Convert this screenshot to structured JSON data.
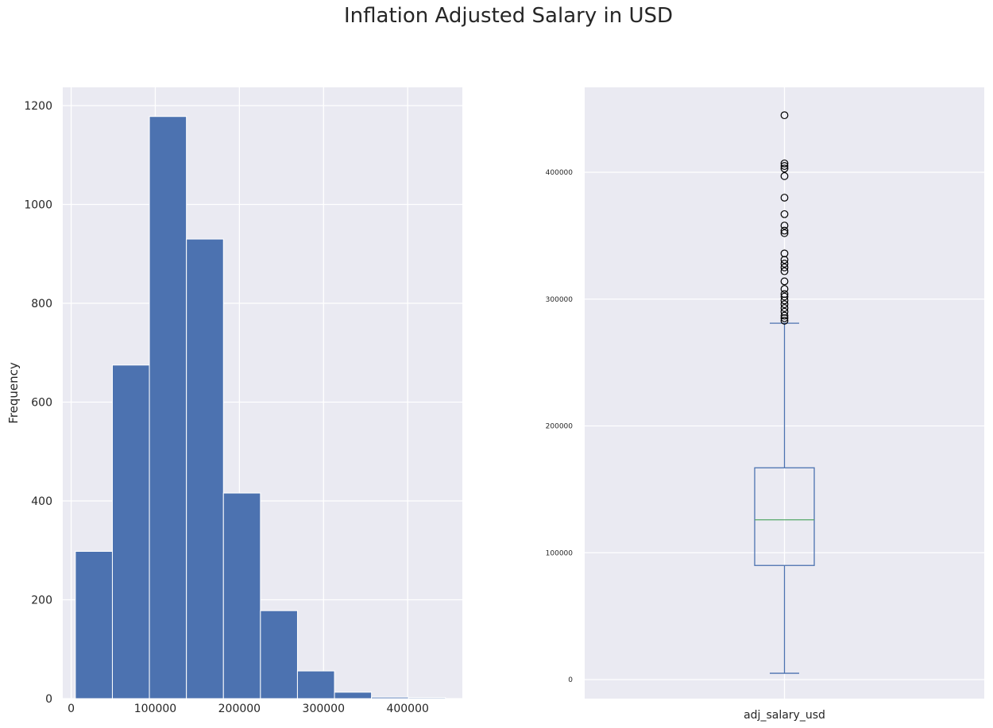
{
  "figure_title": "Inflation Adjusted Salary in USD",
  "colors": {
    "background": "#eaeaf2",
    "grid": "#ffffff",
    "bar_fill": "#4c72b0",
    "box_line": "#4c72b0",
    "median_line": "#55a868"
  },
  "chart_data": [
    {
      "type": "bar",
      "subtype": "histogram",
      "title": "",
      "xlabel": "",
      "ylabel": "Frequency",
      "bin_edges": [
        5000,
        49000,
        93000,
        137000,
        181000,
        225000,
        269000,
        313000,
        357000,
        401000,
        445000
      ],
      "values": [
        298,
        675,
        1178,
        930,
        416,
        178,
        56,
        13,
        3,
        2
      ],
      "xlim": [
        -10000,
        465000
      ],
      "ylim": [
        0,
        1237
      ],
      "xticks": [
        0,
        100000,
        200000,
        300000,
        400000
      ],
      "xtick_labels": [
        "0",
        "100000",
        "200000",
        "300000",
        "400000"
      ],
      "yticks": [
        0,
        200,
        400,
        600,
        800,
        1000,
        1200
      ],
      "ytick_labels": [
        "0",
        "200",
        "400",
        "600",
        "800",
        "1000",
        "1200"
      ],
      "grid": true
    },
    {
      "type": "box",
      "title": "",
      "xlabel": "",
      "ylabel": "",
      "category": "adj_salary_usd",
      "whisker_low": 5000,
      "q1": 90000,
      "median": 126000,
      "q3": 167000,
      "whisker_high": 281000,
      "outliers": [
        283000,
        285000,
        287000,
        290000,
        293000,
        296000,
        299000,
        302000,
        304000,
        308000,
        314000,
        322000,
        325000,
        328000,
        331000,
        336000,
        352000,
        354000,
        358000,
        367000,
        380000,
        397000,
        403000,
        405000,
        407000,
        445000
      ],
      "ylim": [
        -15000,
        467000
      ],
      "yticks": [
        0,
        100000,
        200000,
        300000,
        400000
      ],
      "ytick_labels": [
        "0",
        "100000",
        "200000",
        "300000",
        "400000"
      ],
      "grid": true
    }
  ]
}
